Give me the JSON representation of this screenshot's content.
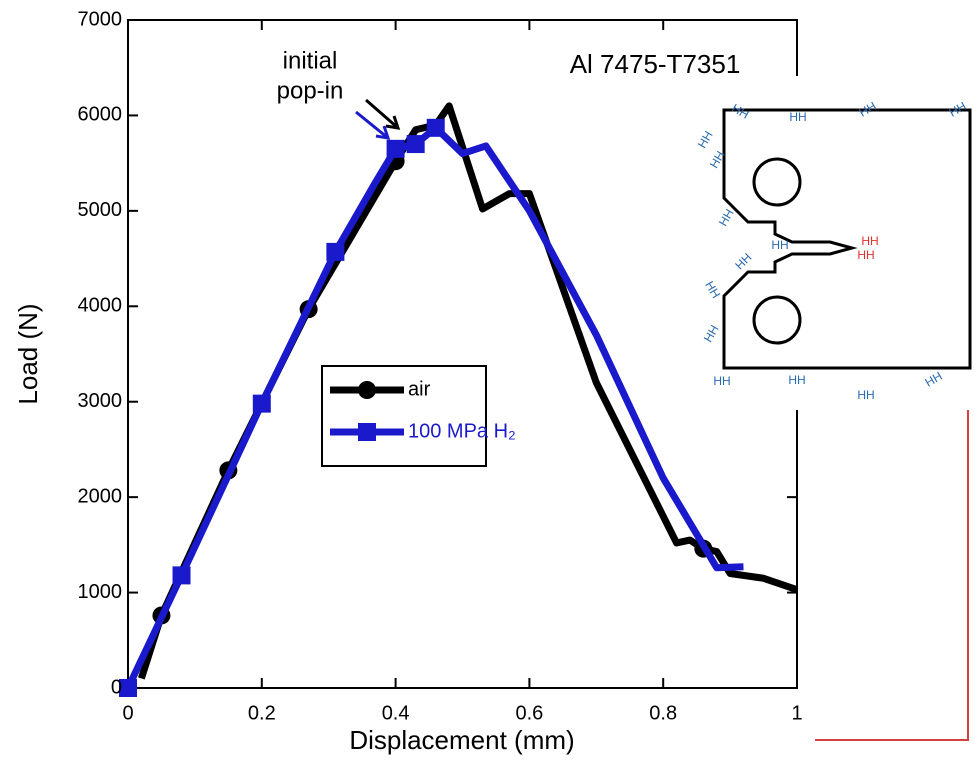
{
  "chart_data": {
    "type": "line",
    "xlabel": "Displacement (mm)",
    "ylabel": "Load (N)",
    "annotations": [
      "initial",
      "pop-in",
      "Al 7475-T7351"
    ],
    "xlim": [
      0,
      1
    ],
    "xticks": [
      0,
      0.2,
      0.4,
      0.6,
      0.8,
      1
    ],
    "ylim": [
      0,
      7000
    ],
    "yticks": [
      0,
      1000,
      2000,
      3000,
      4000,
      5000,
      6000,
      7000
    ],
    "series": [
      {
        "name": "air",
        "color": "#000000",
        "marker": "circle",
        "x": [
          0.02,
          0.05,
          0.15,
          0.27,
          0.4,
          0.43,
          0.46,
          0.48,
          0.53,
          0.57,
          0.6,
          0.7,
          0.82,
          0.84,
          0.86,
          0.88,
          0.9,
          0.95,
          1.0
        ],
        "values": [
          100,
          760,
          2280,
          3970,
          5520,
          5850,
          5900,
          6100,
          5020,
          5180,
          5180,
          3200,
          1520,
          1550,
          1460,
          1430,
          1200,
          1150,
          1030
        ],
        "marker_x": [
          0.05,
          0.15,
          0.27,
          0.4,
          0.86
        ],
        "marker_values": [
          760,
          2280,
          3970,
          5520,
          1460
        ]
      },
      {
        "name": "100 MPa H₂",
        "color": "#1a1acc",
        "marker": "square",
        "x": [
          0,
          0.08,
          0.2,
          0.31,
          0.37,
          0.4,
          0.43,
          0.46,
          0.5,
          0.535,
          0.6,
          0.7,
          0.8,
          0.88,
          0.92
        ],
        "values": [
          0,
          1180,
          2980,
          4570,
          5300,
          5650,
          5700,
          5870,
          5600,
          5680,
          5000,
          3700,
          2200,
          1260,
          1270
        ],
        "marker_x": [
          0,
          0.08,
          0.2,
          0.31,
          0.4,
          0.43,
          0.46
        ],
        "marker_values": [
          0,
          1180,
          2980,
          4570,
          5650,
          5700,
          5870
        ]
      }
    ],
    "inset_label": "HH"
  }
}
